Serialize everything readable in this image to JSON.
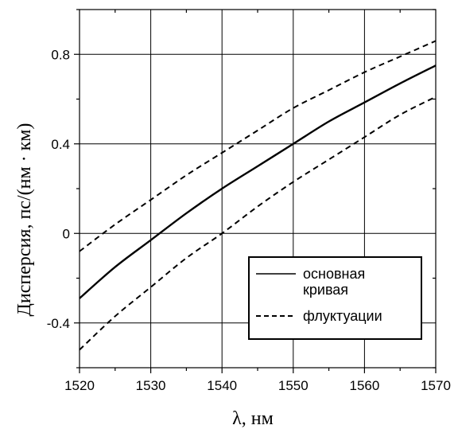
{
  "chart_data": {
    "type": "line",
    "xlabel": "λ, нм",
    "ylabel": "Дисперсия, пс/(нм · км)",
    "xlim": [
      1520,
      1570
    ],
    "ylim": [
      -0.6,
      1.0
    ],
    "x_ticks": [
      1520,
      1530,
      1540,
      1550,
      1560,
      1570
    ],
    "x_tick_labels": [
      "1520",
      "1530",
      "1540",
      "1550",
      "1560",
      "1570"
    ],
    "y_ticks": [
      -0.4,
      0,
      0.4,
      0.8
    ],
    "y_tick_labels": [
      "-0.4",
      "0",
      "0.4",
      "0.8"
    ],
    "grid": true,
    "legend_position": "bottom-right",
    "series": [
      {
        "name": "основная кривая",
        "style": "solid",
        "color": "#000000",
        "x": [
          1520,
          1525,
          1530,
          1535,
          1540,
          1545,
          1550,
          1555,
          1560,
          1565,
          1570
        ],
        "y": [
          -0.29,
          -0.15,
          -0.03,
          0.09,
          0.2,
          0.3,
          0.4,
          0.5,
          0.585,
          0.67,
          0.75
        ]
      },
      {
        "name": "флуктуации",
        "style": "dashed",
        "color": "#000000",
        "x": [
          1520,
          1525,
          1530,
          1535,
          1540,
          1545,
          1550,
          1555,
          1560,
          1565,
          1570
        ],
        "y": [
          -0.08,
          0.04,
          0.15,
          0.26,
          0.36,
          0.46,
          0.56,
          0.64,
          0.72,
          0.79,
          0.86
        ]
      },
      {
        "legend": false,
        "style": "dashed",
        "color": "#000000",
        "x": [
          1520,
          1525,
          1530,
          1535,
          1540,
          1545,
          1550,
          1555,
          1560,
          1565,
          1570
        ],
        "y": [
          -0.52,
          -0.37,
          -0.24,
          -0.11,
          0.0,
          0.12,
          0.23,
          0.33,
          0.43,
          0.53,
          0.61
        ]
      }
    ],
    "legend": {
      "entries": [
        {
          "lines": [
            "основная",
            "кривая"
          ],
          "style": "solid"
        },
        {
          "lines": [
            "флуктуации"
          ],
          "style": "dashed"
        }
      ]
    }
  }
}
